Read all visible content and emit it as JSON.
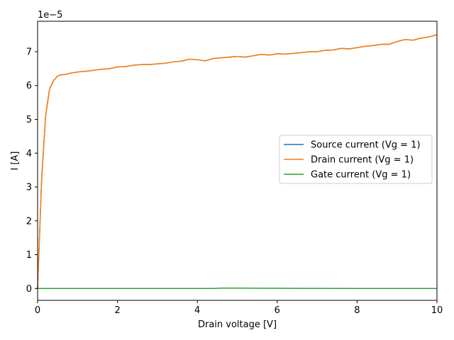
{
  "chart_data": {
    "type": "line",
    "title": "",
    "xlabel": "Drain voltage [V]",
    "ylabel": "I [A]",
    "y_scale_label": "1e−5",
    "xlim": [
      0,
      10
    ],
    "ylim": [
      -0.35,
      7.9
    ],
    "y_multiplier": 1e-05,
    "grid": false,
    "legend_position": "center-right",
    "x_ticks": [
      "0",
      "2",
      "4",
      "6",
      "8",
      "10"
    ],
    "y_ticks": [
      "0",
      "1",
      "2",
      "3",
      "4",
      "5",
      "6",
      "7"
    ],
    "series": [
      {
        "name": "Source current (Vg = 1)",
        "color": "#1f77b4",
        "x": [
          0,
          0.1,
          0.2,
          0.3,
          0.4,
          0.5,
          0.6,
          0.7,
          0.8,
          0.9,
          1.0,
          1.2,
          1.4,
          1.6,
          1.8,
          2.0,
          2.2,
          2.4,
          2.6,
          2.8,
          3.0,
          3.2,
          3.4,
          3.6,
          3.8,
          4.0,
          4.2,
          4.4,
          4.6,
          4.8,
          5.0,
          5.2,
          5.4,
          5.6,
          5.8,
          6.0,
          6.2,
          6.4,
          6.6,
          6.8,
          7.0,
          7.2,
          7.4,
          7.6,
          7.8,
          8.0,
          8.2,
          8.4,
          8.6,
          8.8,
          9.0,
          9.2,
          9.4,
          9.6,
          9.8,
          10.0
        ],
        "values": [
          0,
          3.2,
          5.1,
          5.9,
          6.15,
          6.28,
          6.32,
          6.33,
          6.36,
          6.38,
          6.4,
          6.42,
          6.45,
          6.48,
          6.5,
          6.55,
          6.56,
          6.6,
          6.62,
          6.62,
          6.64,
          6.66,
          6.7,
          6.72,
          6.78,
          6.76,
          6.73,
          6.8,
          6.82,
          6.84,
          6.86,
          6.84,
          6.88,
          6.92,
          6.9,
          6.94,
          6.93,
          6.95,
          6.97,
          7.0,
          7.0,
          7.04,
          7.05,
          7.1,
          7.08,
          7.12,
          7.16,
          7.18,
          7.22,
          7.22,
          7.3,
          7.36,
          7.34,
          7.4,
          7.44,
          7.5
        ]
      },
      {
        "name": "Drain current (Vg = 1)",
        "color": "#ff7f0e",
        "x": [
          0,
          0.1,
          0.2,
          0.3,
          0.4,
          0.5,
          0.6,
          0.7,
          0.8,
          0.9,
          1.0,
          1.2,
          1.4,
          1.6,
          1.8,
          2.0,
          2.2,
          2.4,
          2.6,
          2.8,
          3.0,
          3.2,
          3.4,
          3.6,
          3.8,
          4.0,
          4.2,
          4.4,
          4.6,
          4.8,
          5.0,
          5.2,
          5.4,
          5.6,
          5.8,
          6.0,
          6.2,
          6.4,
          6.6,
          6.8,
          7.0,
          7.2,
          7.4,
          7.6,
          7.8,
          8.0,
          8.2,
          8.4,
          8.6,
          8.8,
          9.0,
          9.2,
          9.4,
          9.6,
          9.8,
          10.0
        ],
        "values": [
          0,
          3.2,
          5.1,
          5.9,
          6.15,
          6.28,
          6.32,
          6.33,
          6.36,
          6.38,
          6.4,
          6.42,
          6.45,
          6.48,
          6.5,
          6.55,
          6.56,
          6.6,
          6.62,
          6.62,
          6.64,
          6.66,
          6.7,
          6.72,
          6.78,
          6.76,
          6.73,
          6.8,
          6.82,
          6.84,
          6.86,
          6.84,
          6.88,
          6.92,
          6.9,
          6.94,
          6.93,
          6.95,
          6.97,
          7.0,
          7.0,
          7.04,
          7.05,
          7.1,
          7.08,
          7.12,
          7.16,
          7.18,
          7.22,
          7.22,
          7.3,
          7.36,
          7.34,
          7.4,
          7.44,
          7.5
        ]
      },
      {
        "name": "Gate current (Vg = 1)",
        "color": "#2ca02c",
        "x": [
          0,
          2,
          4,
          4.4,
          4.6,
          5,
          6,
          8,
          10
        ],
        "values": [
          0,
          0,
          0,
          0,
          0.01,
          0.01,
          0.005,
          0,
          0
        ]
      }
    ]
  }
}
